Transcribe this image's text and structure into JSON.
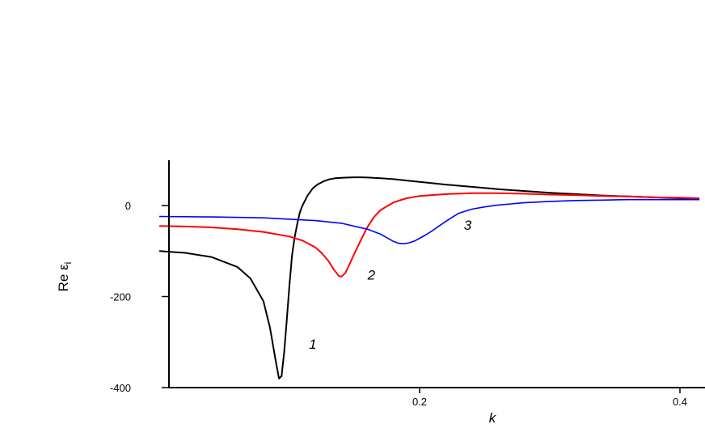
{
  "chart_data": {
    "type": "line",
    "title": "",
    "xlabel": "k",
    "ylabel": "Re ε",
    "ylabel_sub": "i",
    "xlim": [
      0.0,
      0.415
    ],
    "ylim": [
      -400,
      100
    ],
    "x_ticks": [
      0.2,
      0.4
    ],
    "x_tick_labels": [
      "0.2",
      "0.4"
    ],
    "y_ticks": [
      0,
      -200,
      -400
    ],
    "y_tick_labels": [
      "0",
      "-200",
      "-400"
    ],
    "grid": false,
    "legend": "none",
    "series": [
      {
        "name": "1",
        "color": "#000000",
        "x": [
          0.0,
          0.02,
          0.04,
          0.06,
          0.07,
          0.08,
          0.085,
          0.09,
          0.092,
          0.094,
          0.096,
          0.098,
          0.1,
          0.102,
          0.104,
          0.106,
          0.108,
          0.11,
          0.114,
          0.118,
          0.122,
          0.126,
          0.13,
          0.135,
          0.14,
          0.145,
          0.15,
          0.155,
          0.16,
          0.17,
          0.18,
          0.19,
          0.2,
          0.22,
          0.24,
          0.26,
          0.28,
          0.3,
          0.32,
          0.34,
          0.36,
          0.38,
          0.4,
          0.415
        ],
        "y": [
          -100,
          -104,
          -113,
          -135,
          -160,
          -210,
          -268,
          -350,
          -380,
          -375,
          -320,
          -250,
          -175,
          -110,
          -70,
          -40,
          -15,
          0,
          22,
          38,
          47,
          53,
          57,
          60,
          61,
          61.5,
          62,
          62,
          61.5,
          60,
          58,
          55,
          52,
          46,
          41,
          36,
          32,
          28,
          25,
          22,
          20,
          18,
          16,
          15
        ]
      },
      {
        "name": "2",
        "color": "#ff0000",
        "x": [
          0.0,
          0.02,
          0.04,
          0.06,
          0.08,
          0.1,
          0.11,
          0.12,
          0.125,
          0.13,
          0.134,
          0.138,
          0.14,
          0.143,
          0.146,
          0.15,
          0.155,
          0.16,
          0.165,
          0.17,
          0.18,
          0.19,
          0.2,
          0.22,
          0.24,
          0.26,
          0.28,
          0.3,
          0.32,
          0.34,
          0.36,
          0.38,
          0.4,
          0.415
        ],
        "y": [
          -45,
          -46,
          -48,
          -52,
          -58,
          -68,
          -77,
          -92,
          -105,
          -122,
          -140,
          -155,
          -156,
          -148,
          -130,
          -105,
          -75,
          -47,
          -25,
          -10,
          7,
          16,
          21,
          25,
          27,
          27,
          26,
          24,
          23,
          21,
          20,
          18,
          17,
          16
        ]
      },
      {
        "name": "3",
        "color": "#0000ff",
        "x": [
          0.0,
          0.04,
          0.08,
          0.12,
          0.14,
          0.16,
          0.17,
          0.175,
          0.18,
          0.184,
          0.188,
          0.192,
          0.196,
          0.2,
          0.205,
          0.21,
          0.215,
          0.22,
          0.225,
          0.23,
          0.24,
          0.25,
          0.26,
          0.28,
          0.3,
          0.32,
          0.34,
          0.36,
          0.38,
          0.4,
          0.415
        ],
        "y": [
          -24,
          -25,
          -27,
          -33,
          -39,
          -52,
          -63,
          -71,
          -79,
          -83,
          -84,
          -82,
          -78,
          -72,
          -64,
          -55,
          -45,
          -35,
          -26,
          -17,
          -8,
          -3,
          1,
          6,
          9,
          11,
          12,
          13,
          13,
          13,
          13
        ]
      }
    ],
    "annotations": [
      {
        "text": "1",
        "x": 0.115,
        "y": -315
      },
      {
        "text": "2",
        "x": 0.16,
        "y": -163
      },
      {
        "text": "3",
        "x": 0.234,
        "y": -53
      }
    ]
  }
}
